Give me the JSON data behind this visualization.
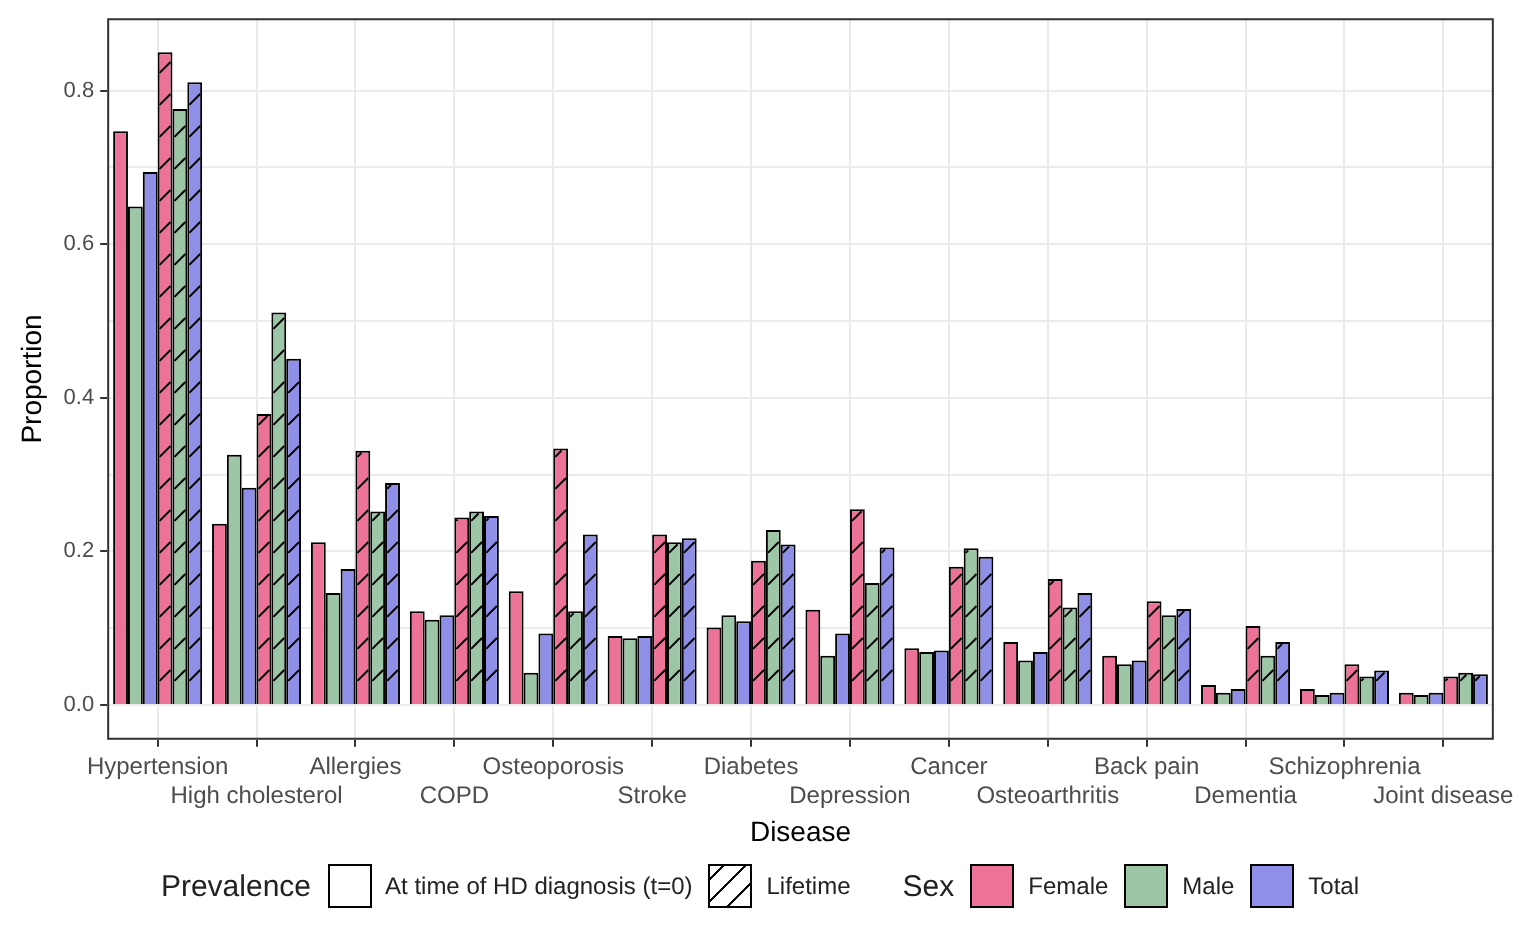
{
  "chart_data": {
    "type": "bar",
    "xlabel": "Disease",
    "ylabel": "Proportion",
    "legend_title": "Sex",
    "categories": [
      "Hypertension",
      "High cholesterol",
      "Allergies",
      "COPD",
      "Osteoporosis",
      "Stroke",
      "Diabetes",
      "Depression",
      "Cancer",
      "Osteoarthritis",
      "Back pain",
      "Dementia",
      "Schizophrenia",
      "Joint disease"
    ],
    "series": [
      {
        "name": "Female",
        "color": "#ec7397",
        "values": [
          0.747,
          0.236,
          0.212,
          0.122,
          0.148,
          0.09,
          0.101,
          0.124,
          0.074,
          0.082,
          0.064,
          0.026,
          0.021,
          0.016
        ]
      },
      {
        "name": "Male",
        "color": "#9dc6a7",
        "values": [
          0.649,
          0.326,
          0.146,
          0.111,
          0.042,
          0.087,
          0.117,
          0.064,
          0.069,
          0.058,
          0.053,
          0.016,
          0.013,
          0.013
        ]
      },
      {
        "name": "Total",
        "color": "#8f8fe8",
        "values": [
          0.694,
          0.283,
          0.177,
          0.117,
          0.093,
          0.09,
          0.109,
          0.093,
          0.071,
          0.069,
          0.058,
          0.021,
          0.016,
          0.016
        ]
      },
      {
        "color": "#ec7397",
        "values": [
          0.85,
          0.379,
          0.331,
          0.244,
          0.334,
          0.222,
          0.188,
          0.255,
          0.18,
          0.164,
          0.135,
          0.103,
          0.053,
          0.037
        ]
      },
      {
        "color": "#9dc6a7",
        "values": [
          0.776,
          0.511,
          0.252,
          0.252,
          0.122,
          0.212,
          0.228,
          0.159,
          0.204,
          0.127,
          0.117,
          0.064,
          0.037,
          0.042
        ]
      },
      {
        "color": "#8f8fe8",
        "values": [
          0.811,
          0.451,
          0.289,
          0.246,
          0.222,
          0.217,
          0.209,
          0.205,
          0.193,
          0.146,
          0.125,
          0.082,
          0.045,
          0.04
        ]
      }
    ],
    "ylim": [
      -0.044,
      0.893
    ],
    "yticks": [
      {
        "value": 0,
        "label": "0.0"
      },
      {
        "value": 0.1,
        "label": null
      },
      0.2,
      {
        "value": 0.3,
        "label": null
      },
      0.4,
      {
        "value": 0.5,
        "label": null
      },
      0.6,
      {
        "value": 0.7,
        "label": null
      },
      0.8
    ],
    "grid": true,
    "legend": "bottom",
    "annotations": [
      "Prevalence",
      "At time of HD diagnosis (t=0)",
      "Lifetime"
    ]
  }
}
